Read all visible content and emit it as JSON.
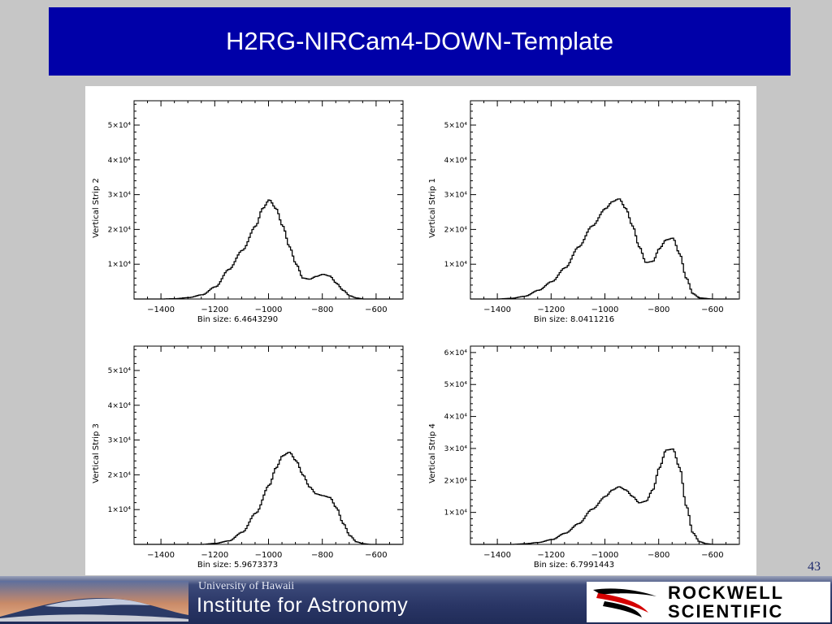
{
  "slide": {
    "title": "H2RG-NIRCam4-DOWN-Template",
    "slide_number": "43"
  },
  "footer": {
    "uh_text": "University of Hawaii",
    "ifa_text": "Institute for Astronomy",
    "rockwell_word1": "ROCKWELL",
    "rockwell_word2": "SCIENTIFIC"
  },
  "colors": {
    "title_bar": "#0000a8",
    "background": "#c6c6c6",
    "footer": "#2a3666",
    "plot_line": "#000000"
  },
  "chart_data": [
    {
      "type": "line",
      "ylabel": "Vertical Strip 2",
      "xlabel": "Bin size: 6.4643290",
      "xlim": [
        -1500,
        -500
      ],
      "ylim": [
        0,
        57000
      ],
      "xticks": [
        -1400,
        -1200,
        -1000,
        -800,
        -600
      ],
      "yticks": [
        10000,
        20000,
        30000,
        40000,
        50000
      ],
      "ytick_labels": [
        "1×10⁴",
        "2×10⁴",
        "3×10⁴",
        "4×10⁴",
        "5×10⁴"
      ],
      "x": [
        -1500,
        -1400,
        -1350,
        -1300,
        -1250,
        -1200,
        -1150,
        -1100,
        -1050,
        -1025,
        -1000,
        -975,
        -950,
        -925,
        -900,
        -875,
        -850,
        -825,
        -800,
        -775,
        -750,
        -725,
        -700,
        -675,
        -650,
        -600
      ],
      "y": [
        0,
        0,
        100,
        400,
        1200,
        3500,
        8500,
        14000,
        21000,
        26000,
        28500,
        26000,
        21000,
        15000,
        10000,
        6000,
        5700,
        6500,
        7100,
        6600,
        4500,
        2500,
        900,
        300,
        0,
        0
      ]
    },
    {
      "type": "line",
      "ylabel": "Vertical Strip 1",
      "xlabel": "Bin size: 8.0411216",
      "xlim": [
        -1500,
        -500
      ],
      "ylim": [
        0,
        57000
      ],
      "xticks": [
        -1400,
        -1200,
        -1000,
        -800,
        -600
      ],
      "yticks": [
        10000,
        20000,
        30000,
        40000,
        50000
      ],
      "ytick_labels": [
        "1×10⁴",
        "2×10⁴",
        "3×10⁴",
        "4×10⁴",
        "5×10⁴"
      ],
      "x": [
        -1500,
        -1400,
        -1350,
        -1300,
        -1250,
        -1200,
        -1150,
        -1100,
        -1050,
        -1000,
        -975,
        -950,
        -925,
        -900,
        -875,
        -850,
        -825,
        -800,
        -775,
        -750,
        -725,
        -700,
        -675,
        -650,
        -600
      ],
      "y": [
        0,
        0,
        200,
        800,
        2500,
        5000,
        9000,
        15000,
        21000,
        26000,
        28000,
        28800,
        26000,
        21000,
        15000,
        10500,
        10800,
        14500,
        17000,
        17500,
        13000,
        6000,
        1500,
        300,
        0
      ]
    },
    {
      "type": "line",
      "ylabel": "Vertical Strip 3",
      "xlabel": "Bin size: 5.9673373",
      "xlim": [
        -1500,
        -500
      ],
      "ylim": [
        0,
        57000
      ],
      "xticks": [
        -1400,
        -1200,
        -1000,
        -800,
        -600
      ],
      "yticks": [
        10000,
        20000,
        30000,
        40000,
        50000
      ],
      "ytick_labels": [
        "1×10⁴",
        "2×10⁴",
        "3×10⁴",
        "4×10⁴",
        "5×10⁴"
      ],
      "x": [
        -1500,
        -1250,
        -1200,
        -1150,
        -1100,
        -1050,
        -1000,
        -975,
        -950,
        -925,
        -900,
        -875,
        -850,
        -825,
        -800,
        -775,
        -750,
        -725,
        -700,
        -675,
        -650,
        -625,
        -600
      ],
      "y": [
        0,
        0,
        300,
        1000,
        3500,
        9000,
        17000,
        22000,
        25500,
        26500,
        24000,
        20000,
        16500,
        14500,
        14000,
        13500,
        10500,
        6000,
        2500,
        700,
        200,
        0,
        0
      ]
    },
    {
      "type": "line",
      "ylabel": "Vertical Strip 4",
      "xlabel": "Bin size: 6.7991443",
      "xlim": [
        -1500,
        -500
      ],
      "ylim": [
        0,
        62000
      ],
      "xticks": [
        -1400,
        -1200,
        -1000,
        -800,
        -600
      ],
      "yticks": [
        10000,
        20000,
        30000,
        40000,
        50000,
        60000
      ],
      "ytick_labels": [
        "1×10⁴",
        "2×10⁴",
        "3×10⁴",
        "4×10⁴",
        "5×10⁴",
        "6×10⁴"
      ],
      "x": [
        -1500,
        -1350,
        -1300,
        -1250,
        -1200,
        -1150,
        -1100,
        -1050,
        -1000,
        -975,
        -950,
        -925,
        -900,
        -875,
        -850,
        -825,
        -800,
        -775,
        -750,
        -725,
        -700,
        -675,
        -650,
        -625,
        -600
      ],
      "y": [
        0,
        0,
        200,
        600,
        1500,
        3500,
        6500,
        11000,
        15000,
        17000,
        18000,
        17000,
        15000,
        13000,
        13500,
        17000,
        24000,
        29500,
        29800,
        24000,
        12000,
        3500,
        800,
        200,
        0
      ]
    }
  ]
}
